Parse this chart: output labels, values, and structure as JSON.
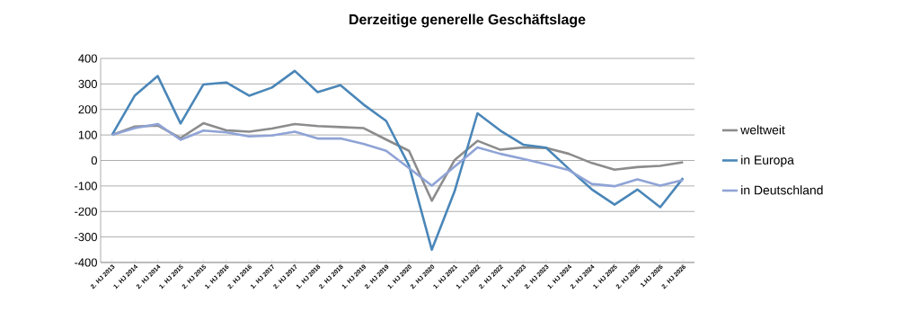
{
  "chart_data": {
    "type": "line",
    "title": "Derzeitige generelle Geschäftslage",
    "categories": [
      "2. HJ 2013",
      "1. HJ 2014",
      "2. HJ 2014",
      "1. HJ 2015",
      "2. HJ 2015",
      "1. HJ 2016",
      "2. HJ 2016",
      "1. HJ 2017",
      "2. HJ 2017",
      "1. HJ 2018",
      "2. HJ 2018",
      "1. HJ 2019",
      "2. HJ 2019",
      "1. HJ 2020",
      "2. HJ 2020",
      "1. HJ 2021",
      "1. HJ 2022",
      "2. HJ 2022",
      "1. HJ 2023",
      "2. HJ 2023",
      "1. HJ 2024",
      "2. HJ 2024",
      "1. HJ 2025",
      "2. HJ 2025",
      "1.HJ 2026",
      "2. HJ 2026"
    ],
    "series": [
      {
        "name": "weltweit",
        "color": "#8c8c8c",
        "values": [
          100,
          133,
          137,
          88,
          146,
          118,
          113,
          125,
          143,
          135,
          131,
          127,
          82,
          38,
          -158,
          2,
          77,
          42,
          51,
          49,
          26,
          -10,
          -36,
          -26,
          -21,
          -7
        ]
      },
      {
        "name": "in Europa",
        "color": "#4a86b8",
        "values": [
          100,
          255,
          331,
          145,
          298,
          306,
          254,
          286,
          351,
          268,
          295,
          220,
          155,
          -20,
          -350,
          -120,
          185,
          117,
          62,
          50,
          -33,
          -113,
          -173,
          -114,
          -183,
          -69
        ]
      },
      {
        "name": "in Deutschland",
        "color": "#8fa3d6",
        "values": [
          100,
          127,
          143,
          81,
          117,
          110,
          94,
          98,
          113,
          86,
          86,
          65,
          38,
          -30,
          -99,
          -24,
          51,
          26,
          6,
          -15,
          -38,
          -92,
          -101,
          -74,
          -99,
          -77
        ]
      }
    ],
    "ylim": [
      -400,
      400
    ],
    "yticks": [
      -400,
      -300,
      -200,
      -100,
      0,
      100,
      200,
      300,
      400
    ],
    "grid": "y",
    "legend": "right",
    "marker": "none",
    "line_style": "solid"
  }
}
